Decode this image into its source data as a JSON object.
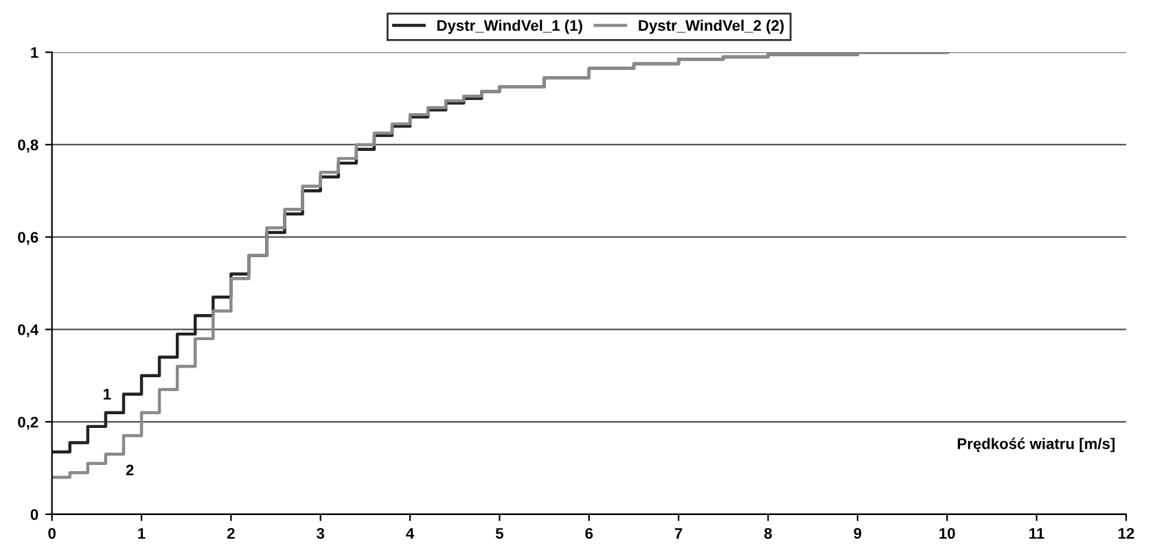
{
  "chart_data": {
    "type": "step",
    "xlabel": "Prędkość wiatru [m/s]",
    "xlim": [
      0,
      12
    ],
    "xticks": [
      0,
      1,
      2,
      3,
      4,
      5,
      6,
      7,
      8,
      9,
      10,
      11,
      12
    ],
    "ylim": [
      0,
      1
    ],
    "yticks": [
      0,
      {
        "value": 0.2,
        "label": "0,2"
      },
      {
        "value": 0.4,
        "label": "0,4"
      },
      {
        "value": 0.6,
        "label": "0,6"
      },
      {
        "value": 0.8,
        "label": "0,8"
      },
      1
    ],
    "grid": "y",
    "legend": "top",
    "line_style": "solid",
    "marker": "none",
    "x": [
      0,
      0.2,
      0.4,
      0.6,
      0.8,
      1.0,
      1.2,
      1.4,
      1.6,
      1.8,
      2.0,
      2.2,
      2.4,
      2.6,
      2.8,
      3.0,
      3.2,
      3.4,
      3.6,
      3.8,
      4.0,
      4.2,
      4.4,
      4.6,
      4.8,
      5.0,
      5.5,
      6.0,
      6.5,
      7.0,
      7.5,
      8.0,
      9.0,
      10.0
    ],
    "series": [
      {
        "name": "Dystr_WindVel_1 (1)",
        "color": "#222222",
        "values": [
          0.135,
          0.155,
          0.19,
          0.22,
          0.26,
          0.3,
          0.34,
          0.39,
          0.43,
          0.47,
          0.52,
          0.56,
          0.61,
          0.65,
          0.7,
          0.73,
          0.76,
          0.79,
          0.82,
          0.84,
          0.86,
          0.875,
          0.89,
          0.9,
          0.915,
          0.925,
          0.945,
          0.965,
          0.975,
          0.985,
          0.99,
          0.995,
          1.0,
          1.0
        ]
      },
      {
        "name": "Dystr_WindVel_2 (2)",
        "color": "#8a8a8a",
        "values": [
          0.08,
          0.09,
          0.11,
          0.13,
          0.17,
          0.22,
          0.27,
          0.32,
          0.38,
          0.44,
          0.51,
          0.56,
          0.62,
          0.66,
          0.71,
          0.74,
          0.77,
          0.8,
          0.825,
          0.845,
          0.865,
          0.88,
          0.895,
          0.905,
          0.915,
          0.925,
          0.945,
          0.965,
          0.975,
          0.985,
          0.99,
          0.995,
          1.0,
          1.0
        ]
      }
    ],
    "annotations": [
      {
        "text": "1",
        "x": 0.7,
        "y": 0.22
      },
      {
        "text": "2",
        "x": 0.7,
        "y": 0.13
      }
    ]
  }
}
